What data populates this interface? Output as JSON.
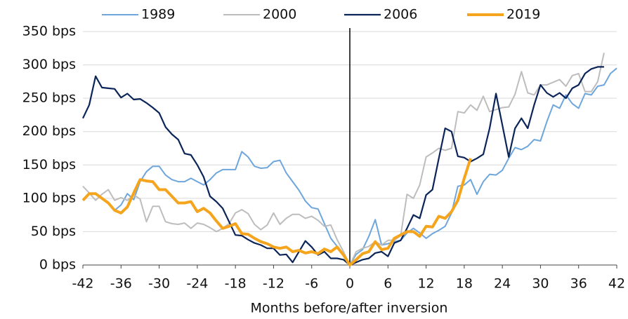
{
  "chart_data": {
    "type": "line",
    "x_label": "Months before/after inversion",
    "x": [
      -42,
      -41,
      -40,
      -39,
      -38,
      -37,
      -36,
      -35,
      -34,
      -33,
      -32,
      -31,
      -30,
      -29,
      -28,
      -27,
      -26,
      -25,
      -24,
      -23,
      -22,
      -21,
      -20,
      -19,
      -18,
      -17,
      -16,
      -15,
      -14,
      -13,
      -12,
      -11,
      -10,
      -9,
      -8,
      -7,
      -6,
      -5,
      -4,
      -3,
      -2,
      -1,
      0,
      1,
      2,
      3,
      4,
      5,
      6,
      7,
      8,
      9,
      10,
      11,
      12,
      13,
      14,
      15,
      16,
      17,
      18,
      19,
      20,
      21,
      22,
      23,
      24,
      25,
      26,
      27,
      28,
      29,
      30,
      31,
      32,
      33,
      34,
      35,
      36,
      37,
      38,
      39,
      40,
      41,
      42
    ],
    "xlim": [
      -42,
      42
    ],
    "xticks": [
      -42,
      -36,
      -30,
      -24,
      -18,
      -12,
      -6,
      0,
      6,
      12,
      18,
      24,
      30,
      36,
      42
    ],
    "ylim": [
      0,
      350
    ],
    "yticks": [
      {
        "value": 0,
        "label": "0 bps"
      },
      {
        "value": 50,
        "label": "50 bps"
      },
      {
        "value": 100,
        "label": "100 bps"
      },
      {
        "value": 150,
        "label": "150 bps"
      },
      {
        "value": 200,
        "label": "200 bps"
      },
      {
        "value": 250,
        "label": "250 bps"
      },
      {
        "value": 300,
        "label": "300 bps"
      },
      {
        "value": 350,
        "label": "350 bps"
      }
    ],
    "grid": true,
    "legend": "top",
    "series": [
      {
        "name": "1989",
        "color": "#6ea6dc",
        "width": 2,
        "values": [
          null,
          null,
          null,
          null,
          null,
          82,
          90,
          107,
          98,
          125,
          140,
          148,
          148,
          135,
          128,
          125,
          125,
          130,
          125,
          120,
          128,
          138,
          143,
          143,
          143,
          170,
          162,
          148,
          145,
          146,
          155,
          157,
          138,
          125,
          112,
          96,
          86,
          84,
          62,
          40,
          28,
          15,
          0,
          16,
          23,
          43,
          68,
          30,
          32,
          35,
          37,
          48,
          55,
          48,
          40,
          47,
          52,
          58,
          78,
          118,
          120,
          128,
          106,
          125,
          136,
          135,
          142,
          160,
          176,
          173,
          178,
          188,
          186,
          215,
          240,
          235,
          255,
          242,
          235,
          257,
          255,
          268,
          270,
          287,
          295
        ]
      },
      {
        "name": "2000",
        "color": "#bdbdbd",
        "width": 2,
        "values": [
          118,
          108,
          97,
          106,
          113,
          97,
          101,
          97,
          105,
          99,
          65,
          88,
          88,
          65,
          62,
          61,
          63,
          55,
          63,
          61,
          56,
          50,
          55,
          62,
          78,
          83,
          77,
          61,
          53,
          60,
          78,
          61,
          70,
          76,
          76,
          70,
          73,
          67,
          58,
          60,
          38,
          20,
          0,
          20,
          25,
          28,
          35,
          30,
          37,
          37,
          44,
          106,
          100,
          120,
          162,
          168,
          175,
          172,
          175,
          230,
          228,
          240,
          232,
          253,
          230,
          233,
          236,
          237,
          256,
          290,
          258,
          255,
          270,
          270,
          274,
          278,
          268,
          284,
          287,
          260,
          260,
          275,
          318,
          null,
          null
        ]
      },
      {
        "name": "2006",
        "color": "#0b2559",
        "width": 2.2,
        "values": [
          220,
          240,
          283,
          266,
          265,
          264,
          251,
          257,
          248,
          249,
          243,
          236,
          228,
          207,
          196,
          188,
          167,
          165,
          150,
          132,
          103,
          95,
          85,
          65,
          45,
          44,
          38,
          33,
          30,
          25,
          25,
          15,
          16,
          4,
          20,
          36,
          27,
          15,
          20,
          10,
          10,
          8,
          0,
          4,
          8,
          10,
          18,
          20,
          13,
          33,
          37,
          55,
          75,
          70,
          105,
          113,
          160,
          205,
          200,
          163,
          161,
          155,
          160,
          166,
          205,
          257,
          210,
          162,
          205,
          220,
          205,
          240,
          270,
          258,
          252,
          258,
          250,
          265,
          270,
          287,
          294,
          297,
          297,
          null,
          null
        ]
      },
      {
        "name": "2019",
        "color": "#f5a41d",
        "width": 4,
        "values": [
          97,
          107,
          107,
          100,
          93,
          82,
          78,
          87,
          108,
          128,
          126,
          125,
          113,
          113,
          103,
          93,
          93,
          95,
          80,
          85,
          78,
          66,
          55,
          58,
          62,
          47,
          46,
          40,
          35,
          32,
          27,
          25,
          27,
          20,
          22,
          18,
          20,
          17,
          24,
          20,
          27,
          15,
          0,
          8,
          17,
          20,
          35,
          23,
          25,
          40,
          45,
          50,
          50,
          43,
          58,
          57,
          73,
          70,
          80,
          97,
          130,
          160,
          null,
          null,
          null,
          null,
          null,
          null,
          null,
          null,
          null,
          null,
          null,
          null,
          null,
          null,
          null,
          null,
          null,
          null,
          null,
          null,
          null,
          null,
          null
        ]
      }
    ]
  }
}
